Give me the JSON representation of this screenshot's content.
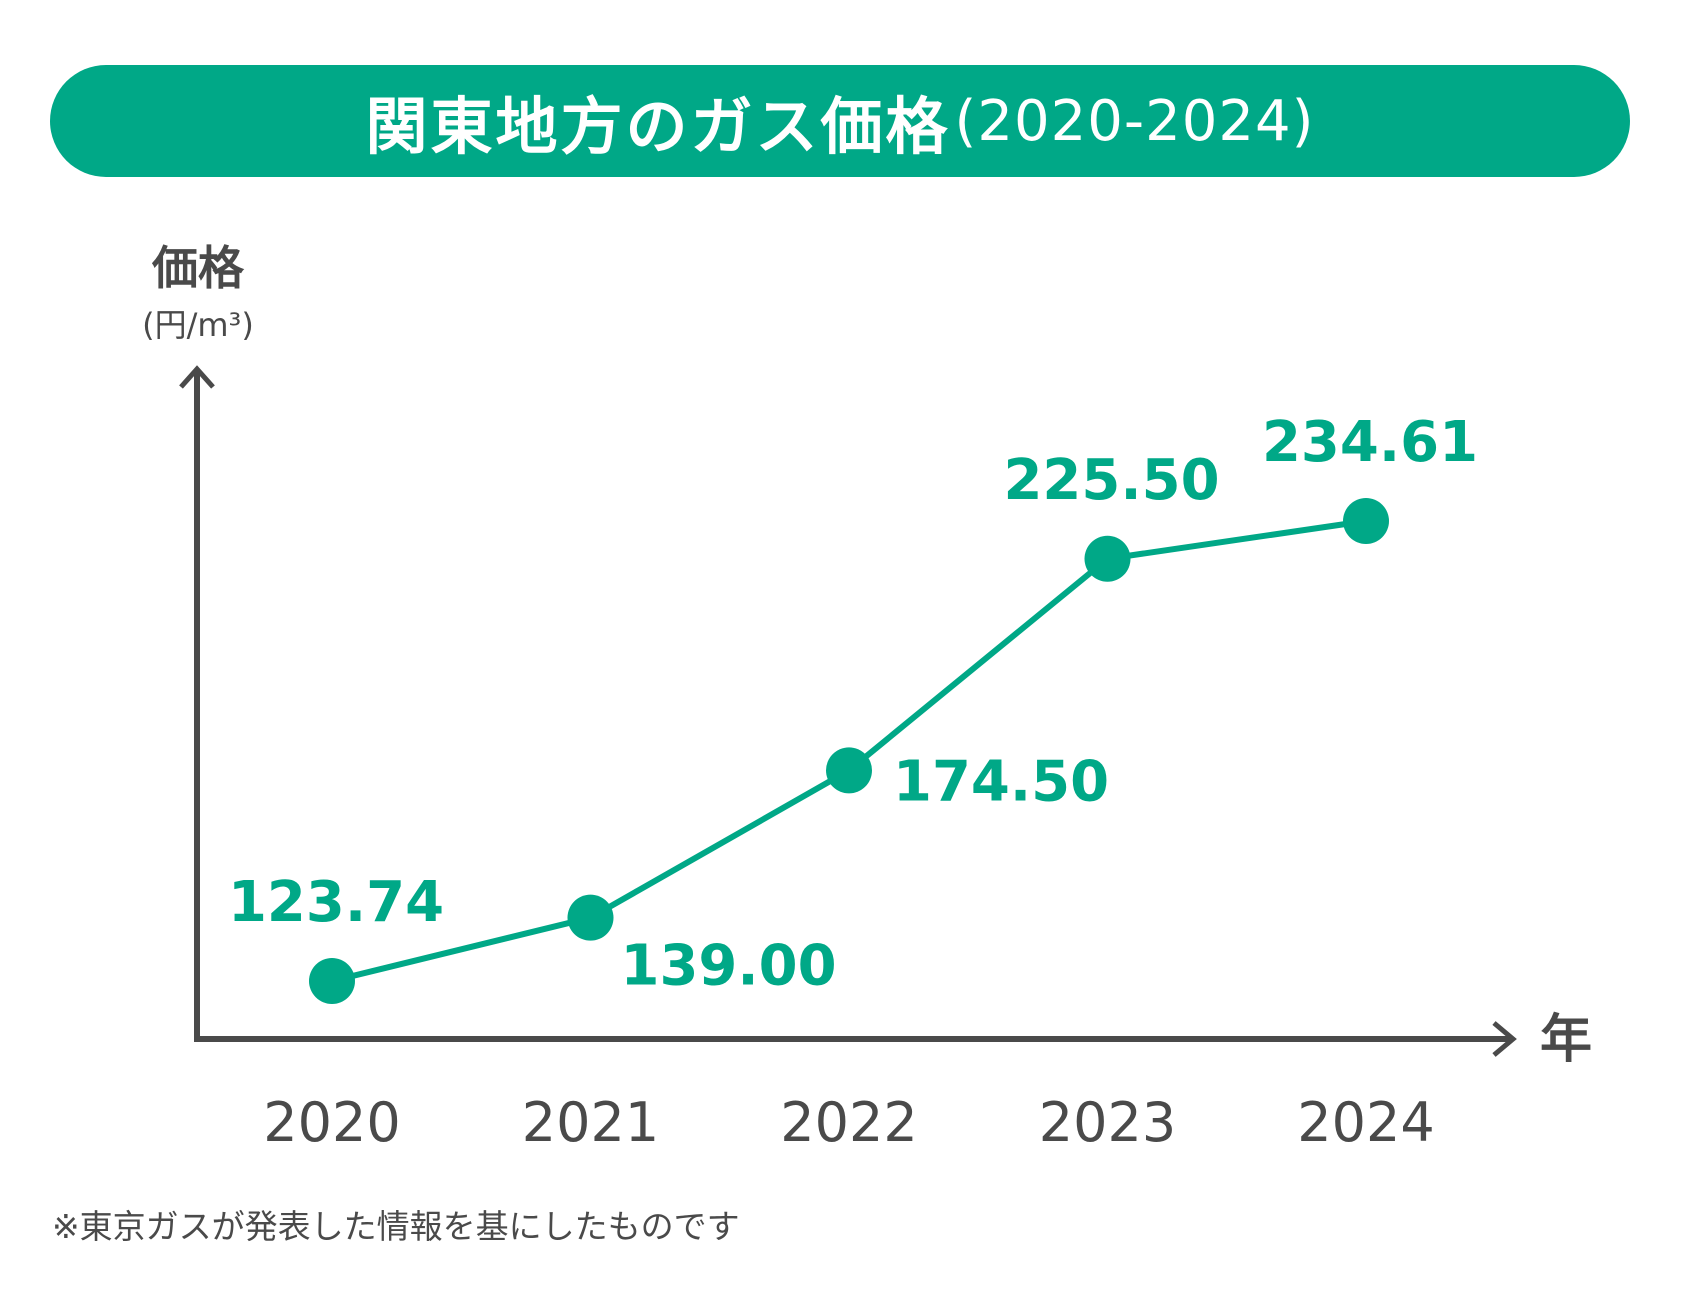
{
  "header": {
    "title": "関東地方のガス価格",
    "range": "(2020-2024)"
  },
  "colors": {
    "accent": "#00a887",
    "axis": "#4a4a4a",
    "text": "#4a4a4a",
    "background": "#ffffff"
  },
  "chart_data": {
    "type": "line",
    "title": "関東地方のガス価格(2020-2024)",
    "ylabel": "価格",
    "yunit": "(円/m³)",
    "xlabel": "年",
    "categories": [
      "2020",
      "2021",
      "2022",
      "2023",
      "2024"
    ],
    "series": [
      {
        "values": [
          123.74,
          139.0,
          174.5,
          225.5,
          234.61
        ],
        "labels": [
          "123.74",
          "139.00",
          "174.50",
          "225.50",
          "234.61"
        ]
      }
    ],
    "label_placement": [
      "above",
      "below-right",
      "right",
      "above",
      "above"
    ],
    "grid": false,
    "legend": "none"
  },
  "footnote": "※東京ガスが発表した情報を基にしたものです"
}
